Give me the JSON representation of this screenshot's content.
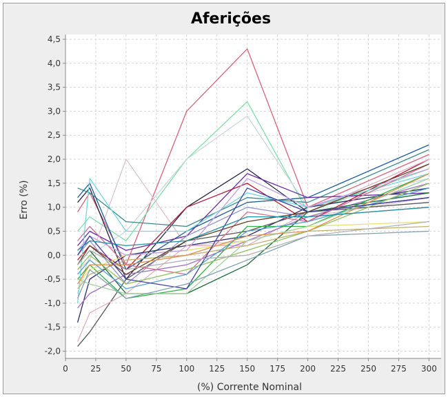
{
  "chart_data": {
    "type": "line",
    "title": "Aferições",
    "xlabel": "(%) Corrente Nominal",
    "ylabel": "Erro (%)",
    "xlim": [
      0,
      310
    ],
    "ylim": [
      -2.15,
      4.6
    ],
    "x_ticks": [
      0,
      25,
      50,
      75,
      100,
      125,
      150,
      175,
      200,
      225,
      250,
      275,
      300
    ],
    "x_tick_labels": [
      "0",
      "25",
      "50",
      "75",
      "100",
      "125",
      "150",
      "175",
      "200",
      "225",
      "250",
      "275",
      "300"
    ],
    "y_ticks": [
      -2.0,
      -1.5,
      -1.0,
      -0.5,
      0.0,
      0.5,
      1.0,
      1.5,
      2.0,
      2.5,
      3.0,
      3.5,
      4.0,
      4.5
    ],
    "y_tick_labels": [
      "-2,0",
      "-1,5",
      "-1,0",
      "-0,5",
      "0,0",
      "0,5",
      "1,0",
      "1,5",
      "2,0",
      "2,5",
      "3,0",
      "3,5",
      "4,0",
      "4,5"
    ],
    "grid": true,
    "legend": "none",
    "colors": {
      "background": "#ffffff",
      "frame": "#eeeeee",
      "grid": "#d6d6d6",
      "axis": "#888888"
    },
    "x": [
      10,
      20,
      50,
      100,
      150,
      200,
      300
    ],
    "series": [
      {
        "color": "#d9607a",
        "values": [
          0.9,
          1.3,
          -0.2,
          3.0,
          4.3,
          1.0,
          2.1
        ]
      },
      {
        "color": "#7fe0a8",
        "values": [
          0.5,
          0.8,
          0.3,
          2.0,
          3.2,
          0.9,
          1.8
        ]
      },
      {
        "color": "#d8c4cc",
        "values": [
          -0.3,
          -0.1,
          2.0,
          0.2,
          0.3,
          0.8,
          1.2
        ]
      },
      {
        "color": "#c8d6d8",
        "values": [
          -0.8,
          0.0,
          0.5,
          2.0,
          2.9,
          1.0,
          1.6
        ]
      },
      {
        "color": "#222244",
        "values": [
          1.1,
          1.4,
          -0.5,
          1.0,
          1.8,
          0.9,
          1.2
        ]
      },
      {
        "color": "#3a8a8a",
        "values": [
          1.4,
          1.3,
          0.7,
          0.6,
          1.2,
          1.1,
          2.2
        ]
      },
      {
        "color": "#1a5a9a",
        "values": [
          1.2,
          1.5,
          -0.3,
          0.5,
          1.1,
          1.2,
          2.3
        ]
      },
      {
        "color": "#6a2aa0",
        "values": [
          0.2,
          0.5,
          0.1,
          0.4,
          1.7,
          1.2,
          1.3
        ]
      },
      {
        "color": "#b01a3a",
        "values": [
          -0.1,
          0.2,
          -0.3,
          1.0,
          1.5,
          0.7,
          2.0
        ]
      },
      {
        "color": "#2a2a6a",
        "values": [
          -1.4,
          -0.5,
          0.0,
          0.2,
          0.4,
          1.0,
          1.4
        ]
      },
      {
        "color": "#555555",
        "values": [
          -1.9,
          -1.6,
          -0.5,
          0.3,
          0.5,
          0.9,
          1.1
        ]
      },
      {
        "color": "#e0b0c0",
        "values": [
          -1.8,
          -1.2,
          -0.8,
          0.2,
          0.2,
          0.9,
          2.0
        ]
      },
      {
        "color": "#a070c0",
        "values": [
          -1.1,
          -0.8,
          -0.4,
          -0.2,
          0.3,
          0.8,
          1.5
        ]
      },
      {
        "color": "#30b040",
        "values": [
          -0.5,
          -0.2,
          -0.9,
          -0.7,
          0.6,
          0.6,
          1.7
        ]
      },
      {
        "color": "#1a6a3a",
        "values": [
          -0.2,
          0.1,
          -0.8,
          -0.8,
          -0.2,
          0.9,
          1.3
        ]
      },
      {
        "color": "#70d8e0",
        "values": [
          -1.0,
          1.6,
          0.5,
          0.5,
          1.3,
          1.0,
          1.7
        ]
      },
      {
        "color": "#e8e070",
        "values": [
          -0.6,
          -0.3,
          0.0,
          0.1,
          0.3,
          0.6,
          0.7
        ]
      },
      {
        "color": "#c0b070",
        "values": [
          -0.7,
          -0.4,
          -0.1,
          0.0,
          0.2,
          0.5,
          0.6
        ]
      },
      {
        "color": "#9090d0",
        "values": [
          0.0,
          0.3,
          -0.6,
          0.4,
          1.0,
          0.8,
          1.0
        ]
      },
      {
        "color": "#d07090",
        "values": [
          0.3,
          0.6,
          -0.2,
          -0.4,
          0.9,
          0.7,
          1.9
        ]
      },
      {
        "color": "#50a0d0",
        "values": [
          -0.4,
          -0.1,
          -0.7,
          -0.4,
          0.5,
          0.7,
          1.4
        ]
      },
      {
        "color": "#90c060",
        "values": [
          -0.3,
          0.0,
          -0.6,
          -0.3,
          0.1,
          0.5,
          1.5
        ]
      },
      {
        "color": "#c0a0e0",
        "values": [
          0.1,
          0.4,
          0.0,
          0.1,
          1.6,
          1.0,
          1.8
        ]
      },
      {
        "color": "#604020",
        "values": [
          -0.2,
          0.2,
          -0.4,
          0.3,
          0.7,
          0.9,
          1.9
        ]
      },
      {
        "color": "#a0d0a0",
        "values": [
          -0.5,
          -0.6,
          -0.8,
          -0.8,
          0.3,
          0.6,
          1.6
        ]
      },
      {
        "color": "#e09050",
        "values": [
          -0.6,
          -0.2,
          -0.2,
          0.0,
          0.4,
          0.5,
          1.7
        ]
      },
      {
        "color": "#4040a0",
        "values": [
          0.0,
          0.4,
          -0.5,
          -0.7,
          1.4,
          0.9,
          1.2
        ]
      },
      {
        "color": "#80a0b0",
        "values": [
          -0.9,
          -0.3,
          -0.9,
          -0.6,
          -0.1,
          0.4,
          0.5
        ]
      },
      {
        "color": "#b0b0b0",
        "values": [
          -0.2,
          0.1,
          -0.3,
          -0.1,
          0.0,
          0.4,
          0.7
        ]
      },
      {
        "color": "#2090a0",
        "values": [
          0.1,
          0.3,
          0.2,
          0.3,
          0.8,
          0.8,
          1.0
        ]
      }
    ]
  }
}
